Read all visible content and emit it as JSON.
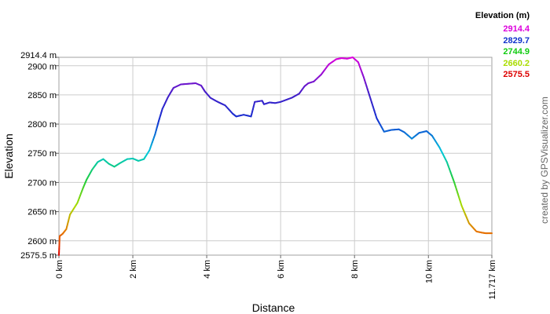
{
  "chart_data": {
    "type": "line",
    "title": "",
    "xlabel": "Distance",
    "ylabel": "Elevation",
    "x_unit": "km",
    "y_unit": "m",
    "xlim": [
      0,
      11.717
    ],
    "ylim": [
      2575.5,
      2914.4
    ],
    "x_ticks": [
      "0 km",
      "2 km",
      "4 km",
      "6 km",
      "8 km",
      "10 km",
      "11.717 km"
    ],
    "x_tick_values": [
      0,
      2,
      4,
      6,
      8,
      10,
      11.717
    ],
    "y_ticks": [
      "2575.5 m",
      "2600 m",
      "2650 m",
      "2700 m",
      "2750 m",
      "2800 m",
      "2850 m",
      "2900 m",
      "2914.4 m"
    ],
    "y_tick_values": [
      2575.5,
      2600,
      2650,
      2700,
      2750,
      2800,
      2850,
      2900,
      2914.4
    ],
    "grid": true,
    "legend": {
      "title": "Elevation (m)",
      "entries": [
        {
          "label": "2914.4",
          "color": "#dd00dd"
        },
        {
          "label": "2829.7",
          "color": "#1133cc"
        },
        {
          "label": "2744.9",
          "color": "#11cc11"
        },
        {
          "label": "2660.2",
          "color": "#aadd00"
        },
        {
          "label": "2575.5",
          "color": "#dd0000"
        }
      ]
    },
    "credit": "created by GPSVisualizer.com",
    "series": [
      {
        "x": [
          0,
          0.02,
          0.1,
          0.2,
          0.3,
          0.5,
          0.65,
          0.75,
          0.9,
          1.05,
          1.2,
          1.35,
          1.5,
          1.65,
          1.85,
          2.0,
          2.15,
          2.3,
          2.45,
          2.6,
          2.7,
          2.8,
          2.95,
          3.1,
          3.3,
          3.5,
          3.7,
          3.85,
          3.95,
          4.1,
          4.3,
          4.5,
          4.7,
          4.8,
          5.0,
          5.2,
          5.3,
          5.5,
          5.55,
          5.7,
          5.85,
          6.0,
          6.3,
          6.5,
          6.65,
          6.75,
          6.9,
          7.1,
          7.3,
          7.5,
          7.65,
          7.8,
          7.95,
          8.1,
          8.25,
          8.4,
          8.6,
          8.8,
          9.0,
          9.2,
          9.35,
          9.55,
          9.75,
          9.95,
          10.1,
          10.3,
          10.5,
          10.7,
          10.9,
          11.1,
          11.3,
          11.45,
          11.55,
          11.717
        ],
        "y": [
          2575.5,
          2608,
          2612,
          2620,
          2645,
          2665,
          2690,
          2705,
          2722,
          2735,
          2740,
          2732,
          2727,
          2733,
          2740,
          2741,
          2737,
          2740,
          2755,
          2782,
          2805,
          2826,
          2846,
          2862,
          2868,
          2869,
          2870,
          2866,
          2856,
          2845,
          2838,
          2832,
          2818,
          2813,
          2816,
          2813,
          2838,
          2840,
          2834,
          2837,
          2836,
          2838,
          2845,
          2852,
          2865,
          2870,
          2873,
          2885,
          2902,
          2911,
          2913,
          2912,
          2914.4,
          2906,
          2880,
          2850,
          2810,
          2787,
          2790,
          2791,
          2786,
          2775,
          2785,
          2788,
          2780,
          2760,
          2735,
          2700,
          2660,
          2630,
          2616,
          2614,
          2613,
          2613
        ]
      }
    ]
  }
}
